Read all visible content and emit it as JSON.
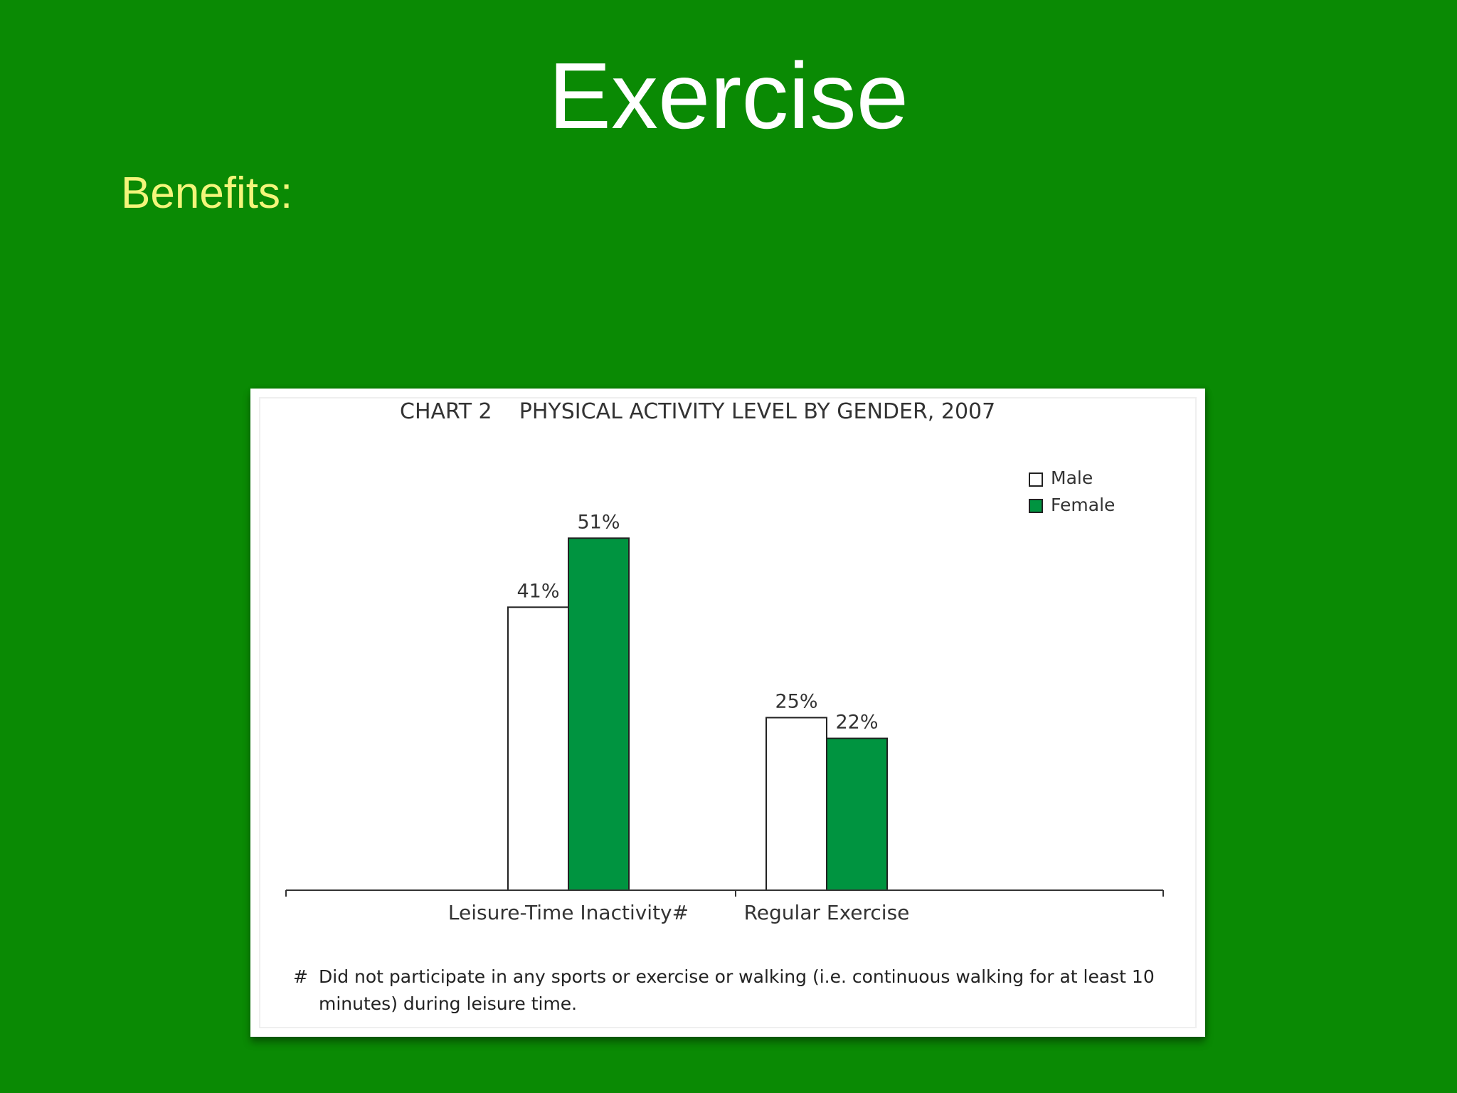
{
  "slide": {
    "title": "Exercise",
    "subtitle": "Benefits:"
  },
  "chart_data": {
    "type": "bar",
    "title": "CHART 2    PHYSICAL ACTIVITY LEVEL BY GENDER, 2007",
    "categories": [
      "Leisure-Time Inactivity#",
      "Regular Exercise"
    ],
    "series": [
      {
        "name": "Male",
        "values": [
          41,
          25
        ],
        "labels": [
          "41%",
          "25%"
        ],
        "color": "#ffffff"
      },
      {
        "name": "Female",
        "values": [
          51,
          22
        ],
        "labels": [
          "51%",
          "22%"
        ],
        "color": "#009440"
      }
    ],
    "ylim": [
      0,
      60
    ],
    "grid": false,
    "legend_position": "top-right",
    "footnote_symbol": "#",
    "footnote": "Did not participate in any sports or exercise or walking (i.e. continuous walking for at least 10 minutes) during leisure time."
  },
  "colors": {
    "background": "#0a8a04",
    "subtitle": "#f3f57a",
    "female_bar": "#009440"
  }
}
